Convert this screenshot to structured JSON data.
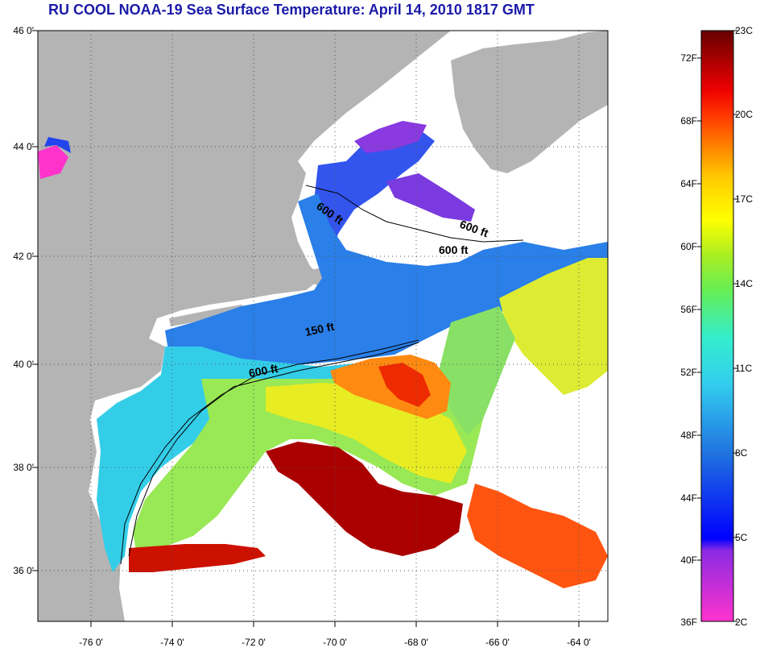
{
  "title": "RU COOL  NOAA-19  Sea Surface Temperature:  April 14, 2010 1817 GMT",
  "lat_labels": [
    "46 0'",
    "44 0'",
    "42 0'",
    "40 0'",
    "38 0'",
    "36 0'"
  ],
  "lon_labels": [
    "-76 0'",
    "-74 0'",
    "-72 0'",
    "-70 0'",
    "-68 0'",
    "-66 0'",
    "-64 0'"
  ],
  "colorbar": {
    "fahrenheit": [
      "72F",
      "68F",
      "64F",
      "60F",
      "56F",
      "52F",
      "48F",
      "44F",
      "40F",
      "36F"
    ],
    "celsius": [
      "23C",
      "20C",
      "17C",
      "14C",
      "11C",
      "8C",
      "5C",
      "2C"
    ]
  },
  "contour_labels": [
    "600 ft",
    "600 ft",
    "600 ft",
    "150 ft",
    "600 ft"
  ],
  "colors": {
    "land": "#b4b4b4",
    "cloud": "#ffffff",
    "title": "#1a1aa8"
  }
}
